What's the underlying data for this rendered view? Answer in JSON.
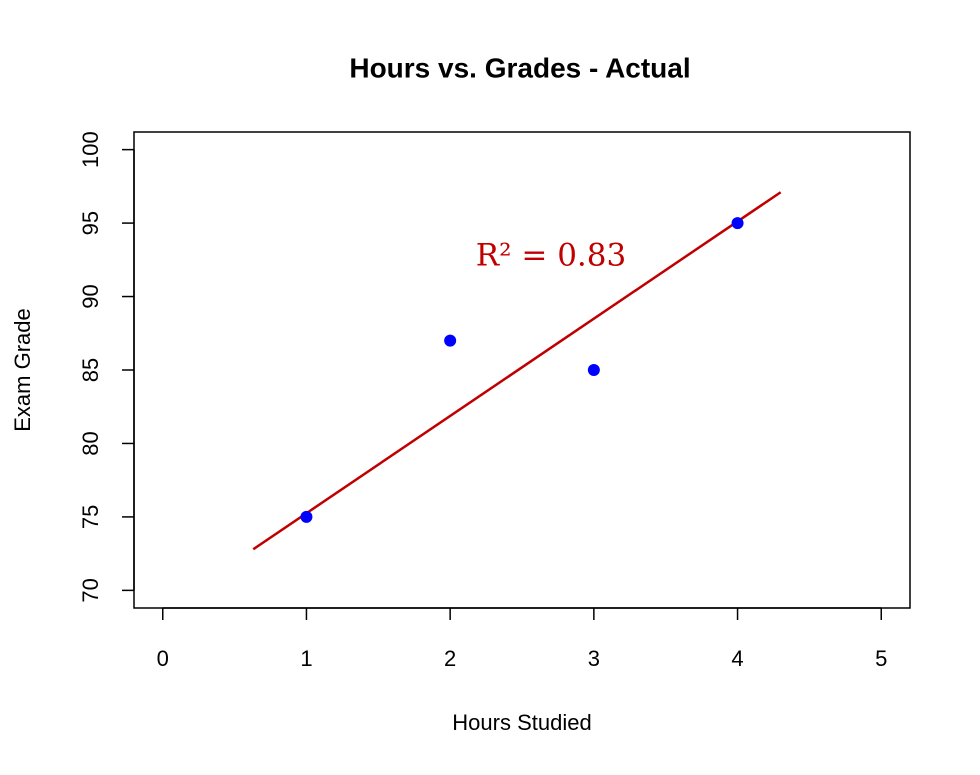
{
  "chart_data": {
    "type": "scatter",
    "title": "Hours vs. Grades - Actual",
    "x_label": "Hours Studied",
    "y_label": "Exam Grade",
    "x": [
      1,
      2,
      3,
      4
    ],
    "values": [
      75,
      87,
      85,
      95
    ],
    "color": "#0000ff",
    "xlim": [
      -0.2,
      5.2
    ],
    "xticks": [
      0,
      1,
      2,
      3,
      4,
      5
    ],
    "ylim": [
      68.8,
      101.2
    ],
    "yticks": [
      70,
      75,
      80,
      85,
      90,
      95,
      100
    ],
    "fit_line": {
      "x": [
        0.63,
        4.3
      ],
      "values": [
        72.8,
        97.1
      ],
      "color": "#c00000"
    },
    "annotation": "R² = 0.83"
  }
}
